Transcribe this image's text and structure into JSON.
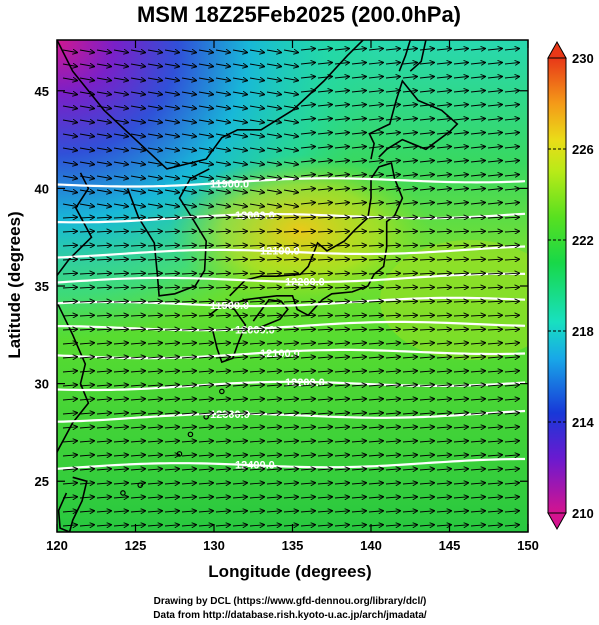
{
  "title": "MSM 18Z25Feb2025 (200.0hPa)",
  "map": {
    "x_label": "Longitude (degrees)",
    "y_label": "Latitude  (degrees)",
    "lon_range": [
      120,
      150
    ],
    "lat_range": [
      22.4,
      47.6
    ],
    "lon_ticks": [
      "120",
      "125",
      "130",
      "135",
      "140",
      "145",
      "150"
    ],
    "lat_ticks": [
      "25",
      "30",
      "35",
      "40",
      "45"
    ],
    "shaded_field": "temperature (K) at 200.0hPa",
    "vector_field": "wind at 200.0hPa",
    "contour_field": "geopotential height"
  },
  "colorbar": {
    "min": 210,
    "max": 230,
    "ticks": [
      "210",
      "214",
      "218",
      "222",
      "226",
      "230"
    ],
    "colors": [
      "#d4148f",
      "#6a1ad0",
      "#1838d8",
      "#18a8e8",
      "#18e0c0",
      "#18d848",
      "#58e020",
      "#b8ea18",
      "#eadc18",
      "#f49a18",
      "#e83818"
    ]
  },
  "contours": [
    {
      "label": "11900.0",
      "lat": 40.2
    },
    {
      "label": "12000.0",
      "lat": 38.4
    },
    {
      "label": "12100.0",
      "lat": 36.6
    },
    {
      "label": "12200.0",
      "lat": 35.2
    },
    {
      "label": "11900.0",
      "lat": 34.0
    },
    {
      "label": "12000.0",
      "lat": 32.8
    },
    {
      "label": "12100.0",
      "lat": 31.4
    },
    {
      "label": "12200.0",
      "lat": 29.8
    },
    {
      "label": "12300.0",
      "lat": 28.2
    },
    {
      "label": "12400.0",
      "lat": 25.7
    }
  ],
  "credits": {
    "line1": "Drawing by DCL (https://www.gfd-dennou.org/library/dcl/)",
    "line2": "Data from http://database.rish.kyoto-u.ac.jp/arch/jmadata/"
  }
}
